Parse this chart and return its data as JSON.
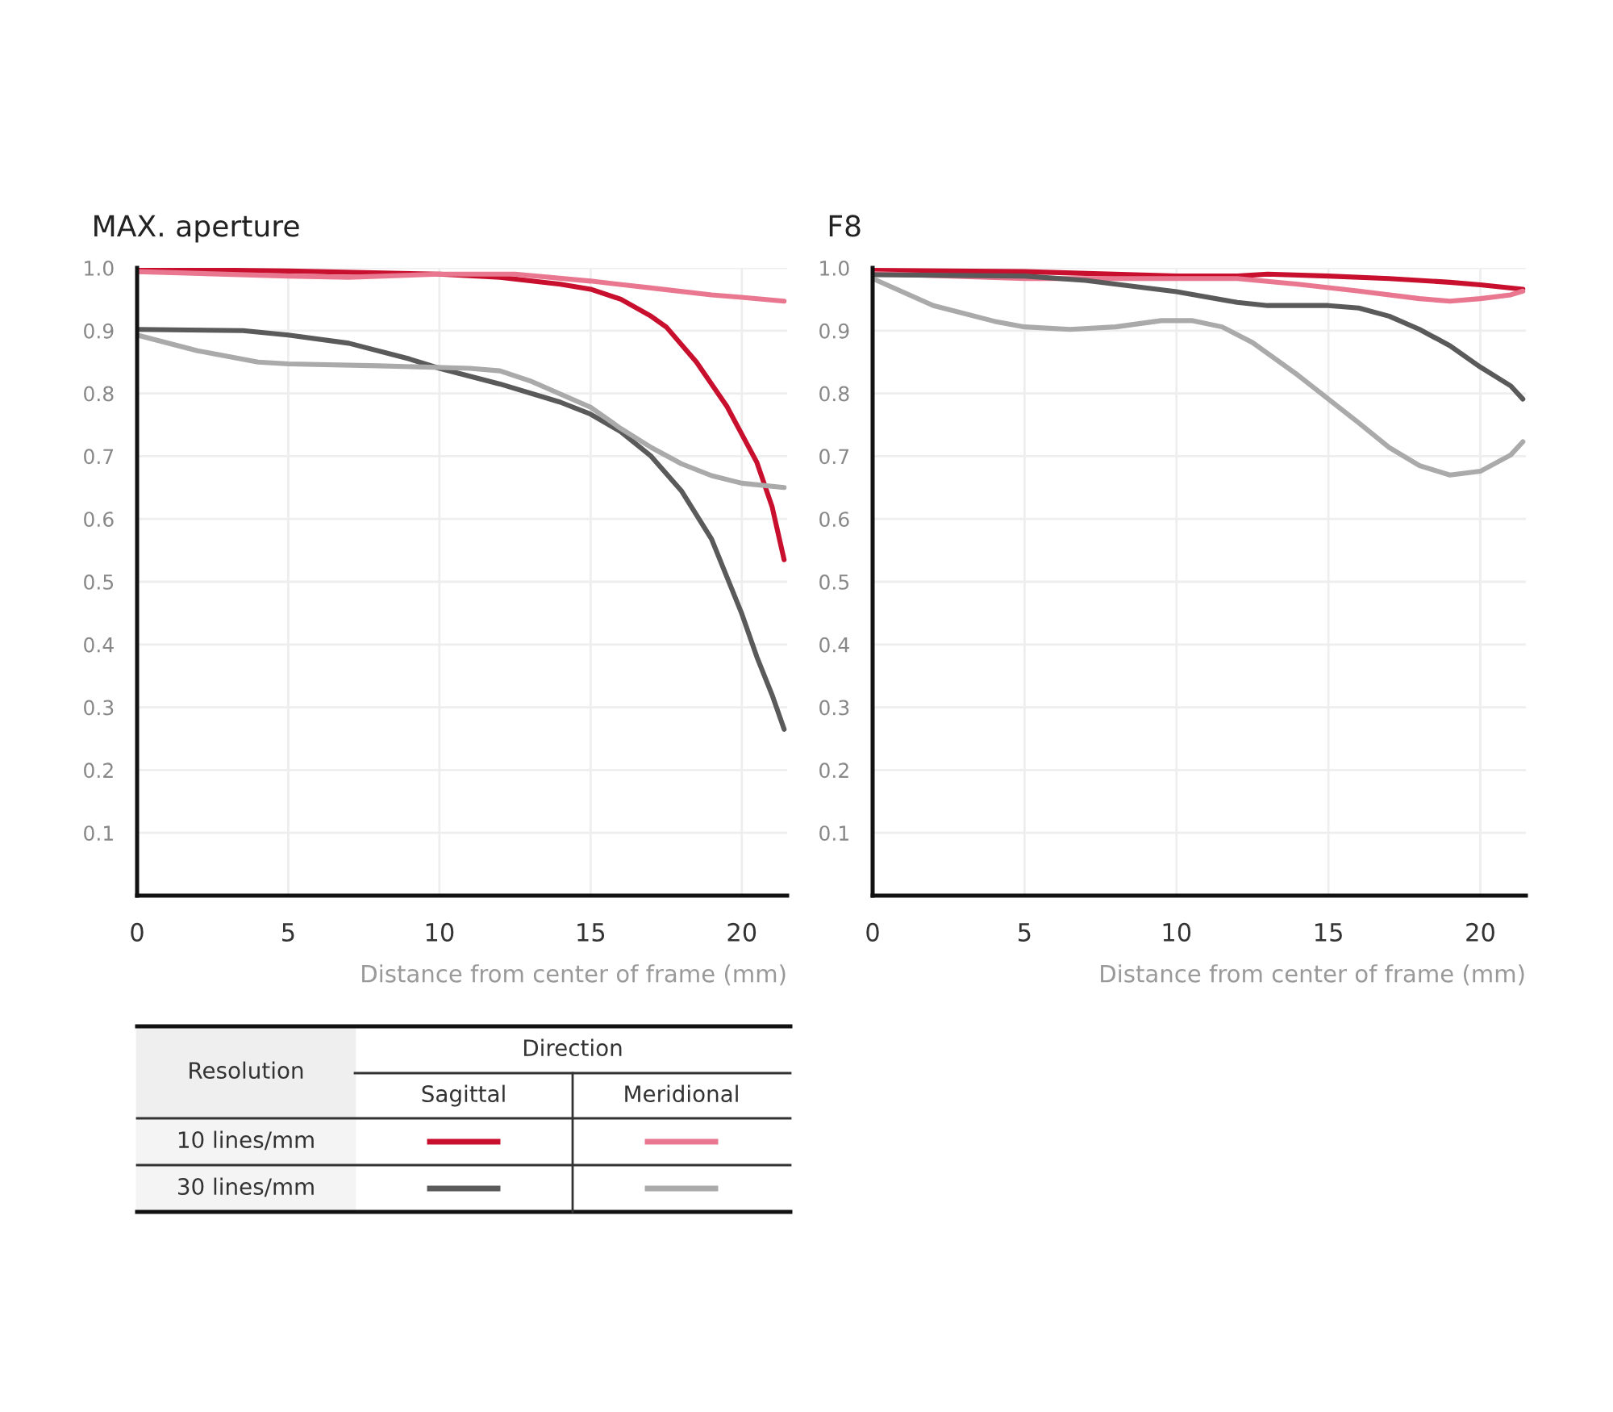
{
  "chart_data": [
    {
      "type": "line",
      "title": "MAX. aperture",
      "xlabel": "Distance from center of frame (mm)",
      "xlim": [
        0,
        21.5
      ],
      "xticks": [
        0,
        5,
        10,
        15,
        20
      ],
      "ylim": [
        0,
        1.0
      ],
      "yticks": [
        0.1,
        0.2,
        0.3,
        0.4,
        0.5,
        0.6,
        0.7,
        0.8,
        0.9,
        {
          "value": 1.0,
          "label": "1.0"
        }
      ],
      "grid": true,
      "legend": false,
      "marker": "none",
      "line_style": "solid",
      "annotations": [
        "Resolution",
        "Direction",
        "Sagittal",
        "Meridional",
        "10 lines/mm",
        "30 lines/mm"
      ],
      "series": [
        {
          "color": "#c8102e",
          "x": [
            0,
            5,
            10,
            12,
            14,
            15,
            16,
            17,
            17.5,
            18.5,
            19.5,
            20.5,
            21,
            21.4
          ],
          "values": [
            0.998,
            0.995,
            0.99,
            0.985,
            0.974,
            0.966,
            0.95,
            0.923,
            0.906,
            0.85,
            0.78,
            0.69,
            0.62,
            0.535
          ]
        },
        {
          "color": "#e8778f",
          "x": [
            0,
            5,
            7,
            10,
            12.5,
            15,
            17,
            19,
            20,
            21.4
          ],
          "values": [
            0.994,
            0.987,
            0.985,
            0.99,
            0.99,
            0.979,
            0.968,
            0.957,
            0.953,
            0.947
          ]
        },
        {
          "color": "#5a5a5a",
          "x": [
            0,
            3.5,
            5,
            7,
            9,
            10,
            12,
            14,
            15,
            16,
            17,
            18,
            19,
            20,
            20.5,
            21,
            21.4
          ],
          "values": [
            0.902,
            0.9,
            0.893,
            0.88,
            0.855,
            0.84,
            0.815,
            0.786,
            0.767,
            0.739,
            0.7,
            0.645,
            0.568,
            0.449,
            0.38,
            0.32,
            0.265
          ]
        },
        {
          "color": "#aaaaaa",
          "x": [
            0,
            2,
            4,
            5,
            8,
            11,
            12,
            13,
            15,
            16,
            17,
            18,
            19,
            20,
            21.4
          ],
          "values": [
            0.893,
            0.868,
            0.85,
            0.847,
            0.844,
            0.84,
            0.836,
            0.82,
            0.778,
            0.744,
            0.714,
            0.688,
            0.669,
            0.657,
            0.65
          ]
        }
      ]
    },
    {
      "type": "line",
      "title": "F8",
      "xlabel": "Distance from center of frame (mm)",
      "xlim": [
        0,
        21.5
      ],
      "xticks": [
        0,
        5,
        10,
        15,
        20
      ],
      "ylim": [
        0,
        1.0
      ],
      "yticks": [
        0.1,
        0.2,
        0.3,
        0.4,
        0.5,
        0.6,
        0.7,
        0.8,
        0.9,
        {
          "value": 1.0,
          "label": "1.0"
        }
      ],
      "grid": true,
      "legend": false,
      "marker": "none",
      "line_style": "solid",
      "series": [
        {
          "color": "#c8102e",
          "x": [
            0,
            5,
            10,
            12,
            13,
            15,
            17,
            19,
            20,
            21.4
          ],
          "values": [
            0.996,
            0.994,
            0.987,
            0.987,
            0.99,
            0.987,
            0.983,
            0.977,
            0.973,
            0.966
          ]
        },
        {
          "color": "#e8778f",
          "x": [
            0,
            5,
            8,
            12,
            14,
            16,
            18,
            19,
            20,
            21,
            21.4
          ],
          "values": [
            0.991,
            0.983,
            0.983,
            0.983,
            0.974,
            0.963,
            0.951,
            0.947,
            0.951,
            0.957,
            0.963
          ]
        },
        {
          "color": "#5a5a5a",
          "x": [
            0,
            5,
            7,
            10,
            12,
            13,
            15,
            16,
            17,
            18,
            19,
            20,
            21,
            21.4
          ],
          "values": [
            0.989,
            0.987,
            0.98,
            0.962,
            0.945,
            0.94,
            0.94,
            0.936,
            0.923,
            0.902,
            0.876,
            0.842,
            0.812,
            0.791
          ]
        },
        {
          "color": "#aaaaaa",
          "x": [
            0,
            2,
            4,
            5,
            6.5,
            8,
            9.5,
            10.5,
            11.5,
            12.5,
            14,
            15,
            16,
            17,
            18,
            19,
            20,
            21,
            21.4
          ],
          "values": [
            0.983,
            0.94,
            0.915,
            0.906,
            0.902,
            0.906,
            0.916,
            0.916,
            0.906,
            0.881,
            0.829,
            0.791,
            0.753,
            0.714,
            0.685,
            0.67,
            0.676,
            0.702,
            0.723
          ]
        }
      ]
    }
  ]
}
